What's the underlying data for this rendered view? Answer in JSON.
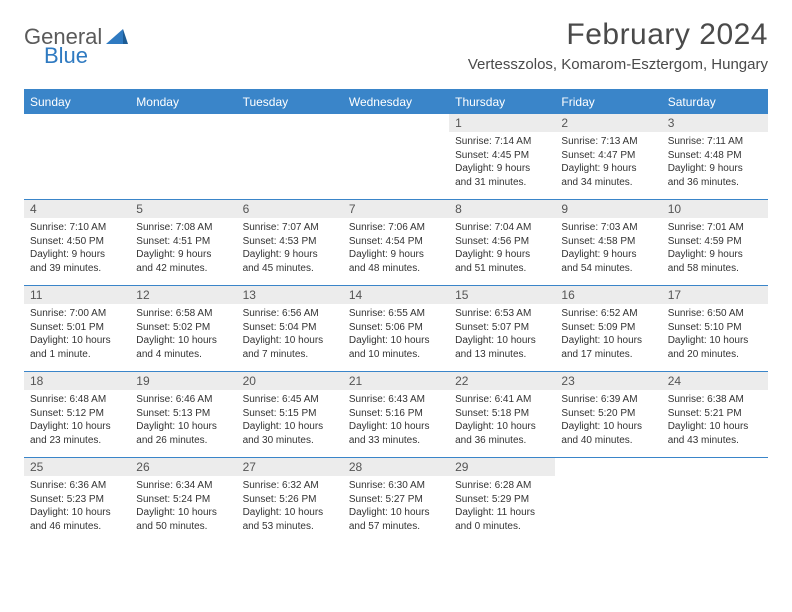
{
  "logo": {
    "part1": "General",
    "part2": "Blue"
  },
  "title": "February 2024",
  "location": "Vertesszolos, Komarom-Esztergom, Hungary",
  "colors": {
    "header_bg": "#3a85c9",
    "header_text": "#ffffff",
    "daynum_bg": "#ececec",
    "rule": "#3a85c9",
    "logo_gray": "#5a5a5a",
    "logo_blue": "#2f7ac1"
  },
  "weekdays": [
    "Sunday",
    "Monday",
    "Tuesday",
    "Wednesday",
    "Thursday",
    "Friday",
    "Saturday"
  ],
  "weeks": [
    [
      {
        "empty": true
      },
      {
        "empty": true
      },
      {
        "empty": true
      },
      {
        "empty": true
      },
      {
        "n": "1",
        "sr": "Sunrise: 7:14 AM",
        "ss": "Sunset: 4:45 PM",
        "d1": "Daylight: 9 hours",
        "d2": "and 31 minutes."
      },
      {
        "n": "2",
        "sr": "Sunrise: 7:13 AM",
        "ss": "Sunset: 4:47 PM",
        "d1": "Daylight: 9 hours",
        "d2": "and 34 minutes."
      },
      {
        "n": "3",
        "sr": "Sunrise: 7:11 AM",
        "ss": "Sunset: 4:48 PM",
        "d1": "Daylight: 9 hours",
        "d2": "and 36 minutes."
      }
    ],
    [
      {
        "n": "4",
        "sr": "Sunrise: 7:10 AM",
        "ss": "Sunset: 4:50 PM",
        "d1": "Daylight: 9 hours",
        "d2": "and 39 minutes."
      },
      {
        "n": "5",
        "sr": "Sunrise: 7:08 AM",
        "ss": "Sunset: 4:51 PM",
        "d1": "Daylight: 9 hours",
        "d2": "and 42 minutes."
      },
      {
        "n": "6",
        "sr": "Sunrise: 7:07 AM",
        "ss": "Sunset: 4:53 PM",
        "d1": "Daylight: 9 hours",
        "d2": "and 45 minutes."
      },
      {
        "n": "7",
        "sr": "Sunrise: 7:06 AM",
        "ss": "Sunset: 4:54 PM",
        "d1": "Daylight: 9 hours",
        "d2": "and 48 minutes."
      },
      {
        "n": "8",
        "sr": "Sunrise: 7:04 AM",
        "ss": "Sunset: 4:56 PM",
        "d1": "Daylight: 9 hours",
        "d2": "and 51 minutes."
      },
      {
        "n": "9",
        "sr": "Sunrise: 7:03 AM",
        "ss": "Sunset: 4:58 PM",
        "d1": "Daylight: 9 hours",
        "d2": "and 54 minutes."
      },
      {
        "n": "10",
        "sr": "Sunrise: 7:01 AM",
        "ss": "Sunset: 4:59 PM",
        "d1": "Daylight: 9 hours",
        "d2": "and 58 minutes."
      }
    ],
    [
      {
        "n": "11",
        "sr": "Sunrise: 7:00 AM",
        "ss": "Sunset: 5:01 PM",
        "d1": "Daylight: 10 hours",
        "d2": "and 1 minute."
      },
      {
        "n": "12",
        "sr": "Sunrise: 6:58 AM",
        "ss": "Sunset: 5:02 PM",
        "d1": "Daylight: 10 hours",
        "d2": "and 4 minutes."
      },
      {
        "n": "13",
        "sr": "Sunrise: 6:56 AM",
        "ss": "Sunset: 5:04 PM",
        "d1": "Daylight: 10 hours",
        "d2": "and 7 minutes."
      },
      {
        "n": "14",
        "sr": "Sunrise: 6:55 AM",
        "ss": "Sunset: 5:06 PM",
        "d1": "Daylight: 10 hours",
        "d2": "and 10 minutes."
      },
      {
        "n": "15",
        "sr": "Sunrise: 6:53 AM",
        "ss": "Sunset: 5:07 PM",
        "d1": "Daylight: 10 hours",
        "d2": "and 13 minutes."
      },
      {
        "n": "16",
        "sr": "Sunrise: 6:52 AM",
        "ss": "Sunset: 5:09 PM",
        "d1": "Daylight: 10 hours",
        "d2": "and 17 minutes."
      },
      {
        "n": "17",
        "sr": "Sunrise: 6:50 AM",
        "ss": "Sunset: 5:10 PM",
        "d1": "Daylight: 10 hours",
        "d2": "and 20 minutes."
      }
    ],
    [
      {
        "n": "18",
        "sr": "Sunrise: 6:48 AM",
        "ss": "Sunset: 5:12 PM",
        "d1": "Daylight: 10 hours",
        "d2": "and 23 minutes."
      },
      {
        "n": "19",
        "sr": "Sunrise: 6:46 AM",
        "ss": "Sunset: 5:13 PM",
        "d1": "Daylight: 10 hours",
        "d2": "and 26 minutes."
      },
      {
        "n": "20",
        "sr": "Sunrise: 6:45 AM",
        "ss": "Sunset: 5:15 PM",
        "d1": "Daylight: 10 hours",
        "d2": "and 30 minutes."
      },
      {
        "n": "21",
        "sr": "Sunrise: 6:43 AM",
        "ss": "Sunset: 5:16 PM",
        "d1": "Daylight: 10 hours",
        "d2": "and 33 minutes."
      },
      {
        "n": "22",
        "sr": "Sunrise: 6:41 AM",
        "ss": "Sunset: 5:18 PM",
        "d1": "Daylight: 10 hours",
        "d2": "and 36 minutes."
      },
      {
        "n": "23",
        "sr": "Sunrise: 6:39 AM",
        "ss": "Sunset: 5:20 PM",
        "d1": "Daylight: 10 hours",
        "d2": "and 40 minutes."
      },
      {
        "n": "24",
        "sr": "Sunrise: 6:38 AM",
        "ss": "Sunset: 5:21 PM",
        "d1": "Daylight: 10 hours",
        "d2": "and 43 minutes."
      }
    ],
    [
      {
        "n": "25",
        "sr": "Sunrise: 6:36 AM",
        "ss": "Sunset: 5:23 PM",
        "d1": "Daylight: 10 hours",
        "d2": "and 46 minutes."
      },
      {
        "n": "26",
        "sr": "Sunrise: 6:34 AM",
        "ss": "Sunset: 5:24 PM",
        "d1": "Daylight: 10 hours",
        "d2": "and 50 minutes."
      },
      {
        "n": "27",
        "sr": "Sunrise: 6:32 AM",
        "ss": "Sunset: 5:26 PM",
        "d1": "Daylight: 10 hours",
        "d2": "and 53 minutes."
      },
      {
        "n": "28",
        "sr": "Sunrise: 6:30 AM",
        "ss": "Sunset: 5:27 PM",
        "d1": "Daylight: 10 hours",
        "d2": "and 57 minutes."
      },
      {
        "n": "29",
        "sr": "Sunrise: 6:28 AM",
        "ss": "Sunset: 5:29 PM",
        "d1": "Daylight: 11 hours",
        "d2": "and 0 minutes."
      },
      {
        "empty": true
      },
      {
        "empty": true
      }
    ]
  ]
}
